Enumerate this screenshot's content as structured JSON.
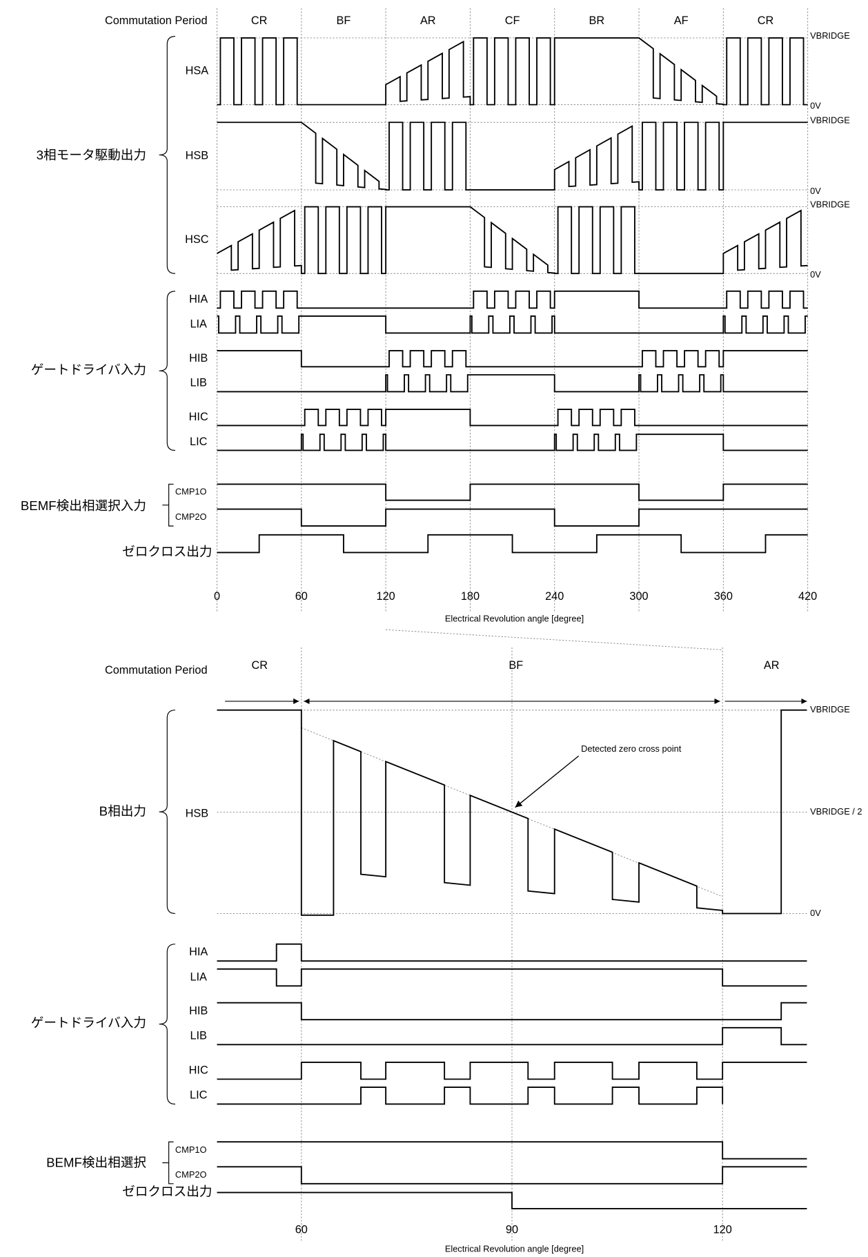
{
  "top": {
    "period_label": "Commutation Period",
    "periods": [
      "CR",
      "BF",
      "AR",
      "CF",
      "BR",
      "AF",
      "CR"
    ],
    "motor_group": "3相モータ駆動出力",
    "phases": [
      "HSA",
      "HSB",
      "HSC"
    ],
    "level_high": "VBRIDGE",
    "level_low": "0V",
    "gate_group": "ゲートドライバ入力",
    "gates": [
      "HIA",
      "LIA",
      "HIB",
      "LIB",
      "HIC",
      "LIC"
    ],
    "bemf_group": "BEMF検出相選択入力",
    "bemf": [
      "CMP1O",
      "CMP2O"
    ],
    "zero_cross": "ゼロクロス出力",
    "ticks": [
      0,
      60,
      120,
      180,
      240,
      300,
      360,
      420
    ],
    "axis_label": "Electrical Revolution angle [degree]"
  },
  "bottom": {
    "period_label": "Commutation Period",
    "periods": [
      "CR",
      "BF",
      "AR"
    ],
    "phase_group": "B相出力",
    "phase": "HSB",
    "level_high": "VBRIDGE",
    "level_mid": "VBRIDGE / 2",
    "level_low": "0V",
    "annotation": "Detected zero cross point",
    "gate_group": "ゲートドライバ入力",
    "gates": [
      "HIA",
      "LIA",
      "HIB",
      "LIB",
      "HIC",
      "LIC"
    ],
    "bemf_group": "BEMF検出相選択",
    "bemf": [
      "CMP1O",
      "CMP2O"
    ],
    "zero_cross": "ゼロクロス出力",
    "ticks": [
      60,
      90,
      120
    ],
    "axis_label": "Electrical Revolution angle [degree]"
  }
}
